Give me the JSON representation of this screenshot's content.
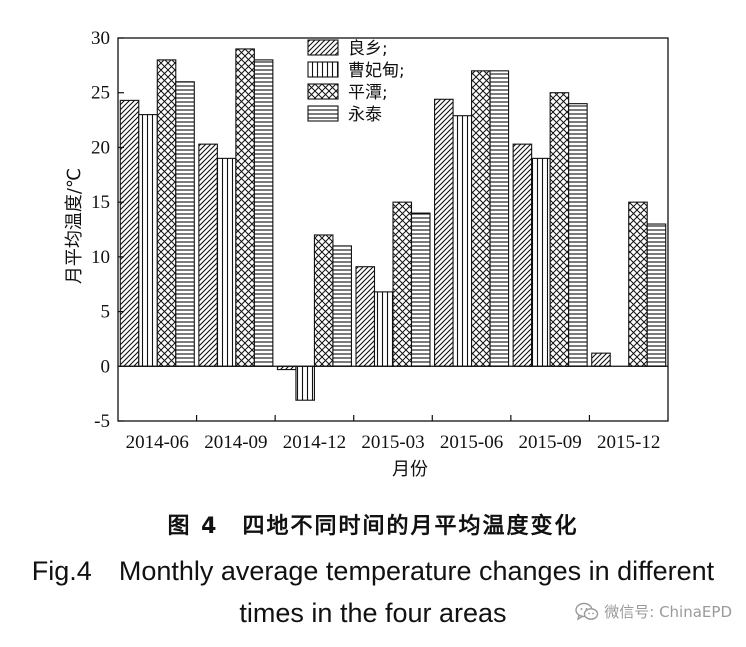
{
  "chart_data": {
    "type": "bar",
    "categories": [
      "2014-06",
      "2014-09",
      "2014-12",
      "2015-03",
      "2015-06",
      "2015-09",
      "2015-12"
    ],
    "series": [
      {
        "name": "良乡;",
        "pattern": "diagonal",
        "values": [
          24.3,
          20.3,
          -0.3,
          9.1,
          24.4,
          20.3,
          1.2
        ]
      },
      {
        "name": "曹妃甸;",
        "pattern": "vertical",
        "values": [
          23.0,
          19.0,
          -3.1,
          6.8,
          22.9,
          19.0,
          null
        ]
      },
      {
        "name": "平潭;",
        "pattern": "crosshatch",
        "values": [
          28.0,
          29.0,
          12.0,
          15.0,
          27.0,
          25.0,
          15.0
        ]
      },
      {
        "name": "永泰",
        "pattern": "horizontal",
        "values": [
          26.0,
          28.0,
          11.0,
          14.0,
          27.0,
          24.0,
          13.0
        ]
      }
    ],
    "xlabel": "月份",
    "ylabel": "月平均温度/℃",
    "ylim": [
      -5,
      30
    ],
    "yticks": [
      "-5",
      "0",
      "5",
      "10",
      "15",
      "20",
      "25",
      "30"
    ],
    "grid": false,
    "legend_position": "top-center"
  },
  "caption_zh": "图 4　四地不同时间的月平均温度变化",
  "caption_en": [
    "Fig.4　Monthly average temperature changes in different",
    "times in the four areas"
  ],
  "watermark": {
    "text": "微信号: ChinaEPD",
    "icon": "wechat-icon"
  }
}
